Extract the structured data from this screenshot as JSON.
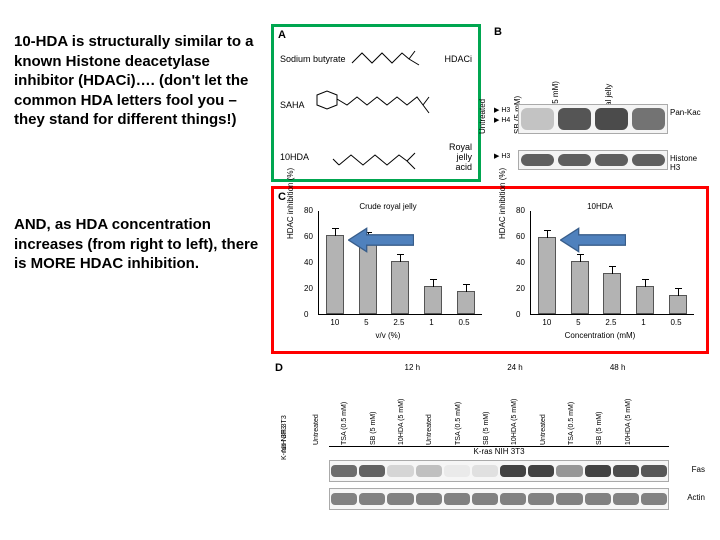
{
  "text": {
    "para1": "10-HDA is structurally similar to a known Histone deacetylase inhibitor (HDACi)…. (don't let the common HDA letters fool you – they stand for different things!)",
    "para2": "AND, as HDA concentration increases (from right to left), there is MORE HDAC inhibition."
  },
  "colors": {
    "panelA_border": "#00a650",
    "panelC_border": "#ff0000",
    "arrow_fill": "#4f81bd",
    "arrow_stroke": "#385d8a",
    "bar_fill": "#b3b3b3",
    "blot_dark": "#2a2a2a",
    "blot_mid": "#6a6a6a",
    "blot_light": "#bcbcbc"
  },
  "panelA": {
    "letter": "A",
    "rows": [
      {
        "label": "Sodium butyrate",
        "right": "HDACi"
      },
      {
        "label": "SAHA",
        "right": ""
      },
      {
        "label": "10HDA",
        "right": "Royal jelly acid"
      }
    ]
  },
  "panelB": {
    "letter": "B",
    "columns": [
      "Untreated",
      "SB (5 mM)",
      "10HDA (5 mM)",
      "5% Royal jelly"
    ],
    "rows": [
      {
        "side": "Pan-Kac",
        "left_markers": [
          "H3",
          "H4"
        ],
        "intensity": [
          0.3,
          0.85,
          0.9,
          0.7
        ]
      },
      {
        "side": "Histone H3",
        "left_markers": [
          "H3"
        ],
        "intensity": [
          0.8,
          0.8,
          0.8,
          0.8
        ]
      }
    ]
  },
  "panelC": {
    "letter": "C",
    "charts": [
      {
        "title": "Crude royal jelly",
        "ylabel": "HDAC inhibition (%)",
        "xlabel": "v/v (%)",
        "ylim": [
          0,
          80
        ],
        "ytick_step": 20,
        "categories": [
          "10",
          "5",
          "2.5",
          "1",
          "0.5"
        ],
        "values": [
          61,
          58,
          41,
          22,
          18
        ]
      },
      {
        "title": "10HDA",
        "ylabel": "HDAC inhibition (%)",
        "xlabel": "Concentration (mM)",
        "ylim": [
          0,
          80
        ],
        "ytick_step": 20,
        "categories": [
          "10",
          "5",
          "2.5",
          "1",
          "0.5"
        ],
        "values": [
          60,
          41,
          32,
          22,
          15
        ]
      }
    ],
    "arrow": {
      "points_left": true
    }
  },
  "panelD": {
    "letter": "D",
    "times": [
      "12 h",
      "24 h",
      "48 h"
    ],
    "columns": [
      "Untreated",
      "TSA (0.5 mM)",
      "SB (5 mM)",
      "10HDA (5 mM)"
    ],
    "cell_lines": [
      "NIH 3T3",
      "K-ras NIH 3T3"
    ],
    "rows": [
      {
        "side": "Fas",
        "intensity": [
          0.7,
          0.75,
          0.2,
          0.3,
          0.1,
          0.15,
          0.9,
          0.9,
          0.5,
          0.9,
          0.85,
          0.8
        ]
      },
      {
        "side": "Actin",
        "intensity": [
          0.6,
          0.6,
          0.6,
          0.6,
          0.6,
          0.6,
          0.6,
          0.6,
          0.6,
          0.6,
          0.6,
          0.6
        ]
      }
    ]
  }
}
